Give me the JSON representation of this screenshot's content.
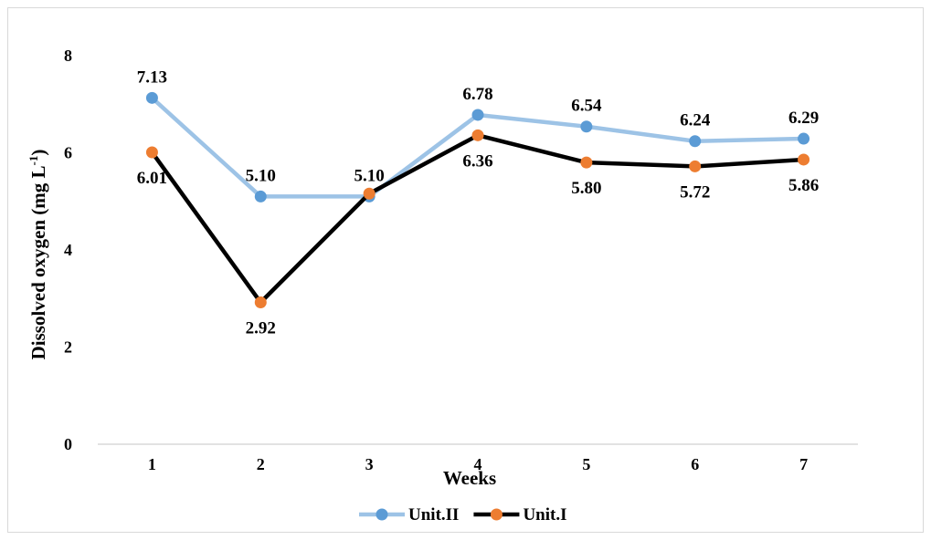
{
  "chart_data": {
    "type": "line",
    "title": "",
    "xlabel": "Weeks",
    "ylabel_main": "Dissolved oxygen (mg L",
    "ylabel_sup": "-1",
    "ylabel_close": ")",
    "ylim": [
      0,
      8
    ],
    "yticks": [
      "0",
      "2",
      "4",
      "6",
      "8"
    ],
    "categories": [
      "1",
      "2",
      "3",
      "4",
      "5",
      "6",
      "7"
    ],
    "grid": false,
    "legend_position": "bottom",
    "series": [
      {
        "name": "Unit.II",
        "values": [
          7.13,
          5.1,
          5.1,
          6.78,
          6.54,
          6.24,
          6.29
        ],
        "labels": [
          "7.13",
          "5.10",
          "5.10",
          "6.78",
          "6.54",
          "6.24",
          "6.29"
        ],
        "line_color": "#9dc3e6",
        "marker_color": "#5b9bd5",
        "label_side": "above"
      },
      {
        "name": "Unit.I",
        "values": [
          6.01,
          2.92,
          5.16,
          6.36,
          5.8,
          5.72,
          5.86
        ],
        "labels": [
          "6.01",
          "2.92",
          "",
          "6.36",
          "5.80",
          "5.72",
          "5.86"
        ],
        "line_color": "#000000",
        "marker_color": "#ed7d31",
        "label_side": "below"
      }
    ]
  }
}
